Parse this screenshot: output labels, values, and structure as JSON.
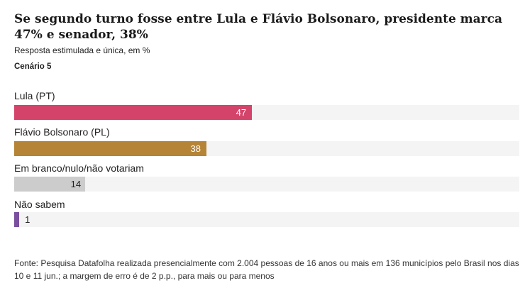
{
  "title": "Se segundo turno fosse entre Lula e Flávio Bolsonaro, presidente marca 47% e senador, 38%",
  "subtitle": "Resposta estimulada e única, em %",
  "scenario": "Cenário 5",
  "source": "Fonte: Pesquisa Datafolha realizada presencialmente com 2.004 pessoas de 16 anos ou mais em 136 municípios pelo Brasil nos dias 10 e 11 jun.; a margem de erro é de 2 p.p., para mais ou para menos",
  "colors": {
    "lula": "#d4446a",
    "flavio": "#b58436",
    "branco": "#cccccc",
    "nao_sabem": "#7a4f9e",
    "track": "#f4f4f4"
  },
  "chart_data": {
    "type": "bar",
    "orientation": "horizontal",
    "categories": [
      "Lula (PT)",
      "Flávio Bolsonaro (PL)",
      "Em branco/nulo/não votariam",
      "Não sabem"
    ],
    "values": [
      47,
      38,
      14,
      1
    ],
    "value_labels": [
      "47",
      "38",
      "14",
      "1"
    ],
    "xlim": [
      0,
      100
    ],
    "grid": false
  }
}
